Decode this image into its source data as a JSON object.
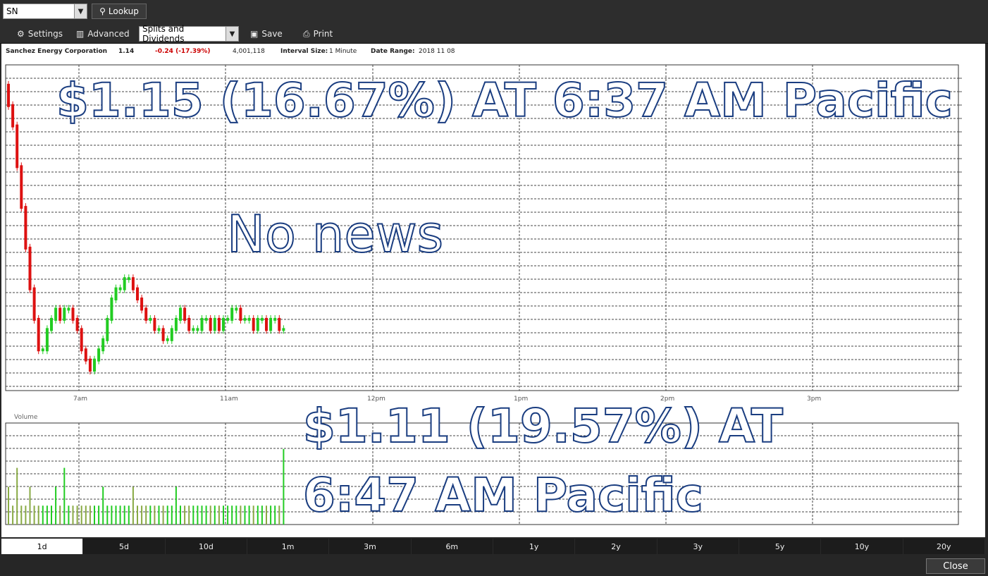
{
  "toolbar": {
    "symbol": "SN",
    "lookup_label": "Lookup",
    "settings_label": "Settings",
    "advanced_label": "Advanced",
    "splits_value": "Splits and Dividends",
    "save_label": "Save",
    "print_label": "Print"
  },
  "info": {
    "company": "Sanchez Energy Corporation",
    "last": "1.14",
    "change": "-0.24 (-17.39%)",
    "volume": "4,001,118",
    "interval_label": "Interval Size:",
    "interval_value": "1 Minute",
    "range_label": "Date Range:",
    "range_value": "2018 11 08"
  },
  "overlays": {
    "top_alert": "$1.15 (16.67%) AT 6:37 AM Pacific",
    "middle": "No news",
    "bottom_line1": "$1.11 (19.57%)  AT",
    "bottom_line2": "6:47 AM Pacific"
  },
  "volume_label": "Volume",
  "x_axis_labels": [
    "7am",
    "11am",
    "12pm",
    "1pm",
    "2pm",
    "3pm"
  ],
  "colors": {
    "up": "#22cc22",
    "down": "#dd1111",
    "grid": "#444444"
  },
  "timeframes": [
    "1d",
    "5d",
    "10d",
    "1m",
    "3m",
    "6m",
    "1y",
    "2y",
    "3y",
    "5y",
    "10y",
    "20y"
  ],
  "active_timeframe": "1d",
  "close_label": "Close",
  "chart_data": {
    "type": "candlestick",
    "series": [
      {
        "name": "",
        "values": [
          1.36,
          1.34,
          1.3,
          1.26,
          1.22,
          1.18,
          1.15,
          1.12,
          1.12,
          1.14,
          1.15,
          1.16,
          1.15,
          1.16,
          1.16,
          1.15,
          1.14,
          1.12,
          1.11,
          1.1,
          1.11,
          1.12,
          1.13,
          1.15,
          1.17,
          1.18,
          1.18,
          1.19,
          1.19,
          1.18,
          1.17,
          1.16,
          1.15,
          1.15,
          1.14,
          1.14,
          1.13,
          1.13,
          1.14,
          1.15,
          1.16,
          1.15,
          1.14,
          1.14,
          1.14,
          1.15,
          1.15,
          1.14,
          1.15,
          1.14,
          1.15,
          1.15,
          1.16,
          1.16,
          1.15,
          1.15,
          1.15,
          1.14,
          1.15,
          1.15,
          1.14,
          1.15,
          1.15,
          1.14,
          1.14
        ]
      }
    ],
    "volume": [
      2,
      1,
      3,
      1,
      1,
      2,
      1,
      1,
      1,
      1,
      1,
      2,
      1,
      3,
      1,
      1,
      1,
      1,
      1,
      1,
      1,
      1,
      2,
      1,
      1,
      1,
      1,
      1,
      1,
      2,
      1,
      1,
      1,
      1,
      1,
      1,
      1,
      1,
      1,
      2,
      1,
      1,
      1,
      1,
      1,
      1,
      1,
      1,
      1,
      1,
      1,
      1,
      1,
      1,
      1,
      1,
      1,
      1,
      1,
      1,
      1,
      1,
      1,
      1,
      4
    ]
  }
}
